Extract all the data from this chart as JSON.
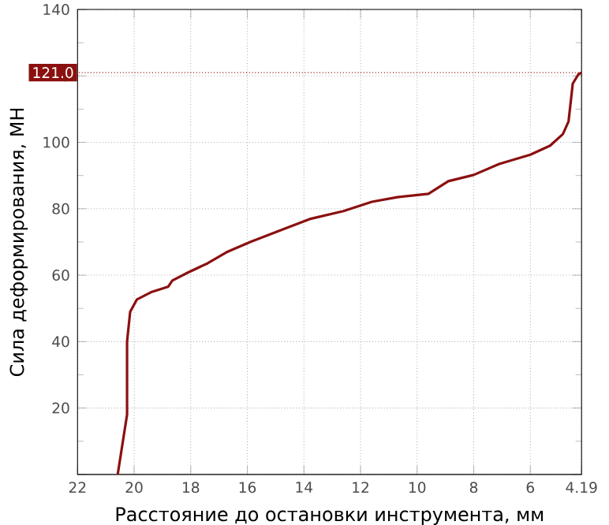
{
  "chart_data": {
    "type": "line",
    "xlabel": "Расстояние до остановки инструмента, мм",
    "ylabel": "Сила деформирования, МН",
    "x": [
      20.58,
      20.25,
      20.25,
      20.14,
      19.9,
      19.37,
      18.8,
      18.65,
      18.1,
      17.4,
      16.74,
      15.9,
      14.8,
      13.8,
      12.6,
      11.6,
      10.7,
      9.6,
      8.9,
      8.0,
      7.1,
      6.0,
      5.3,
      4.85,
      4.65,
      4.5,
      4.3,
      4.19
    ],
    "series": [
      {
        "color": "#8b1010",
        "values": [
          0,
          18,
          40,
          49,
          52.7,
          55,
          56.5,
          58.4,
          60.8,
          63.6,
          66.9,
          70,
          73.6,
          76.9,
          79.3,
          82.1,
          83.5,
          84.5,
          88.3,
          90.2,
          93.5,
          96.3,
          99,
          102.5,
          106.3,
          117.7,
          120.5,
          121
        ]
      }
    ],
    "xlim": [
      22,
      4.19
    ],
    "ylim": [
      0,
      140
    ],
    "xticks": [
      22,
      20,
      18,
      16,
      14,
      12,
      10,
      8,
      6,
      {
        "value": 4.19,
        "label": "4.19"
      }
    ],
    "yticks": [
      {
        "value": 0,
        "label": null
      },
      20,
      40,
      60,
      80,
      100,
      120,
      140
    ],
    "ref_lines": [
      {
        "axis": "y",
        "value": 121,
        "label": "121.0",
        "color": "#8b1010"
      }
    ],
    "grid": true,
    "line_style": "solid",
    "marker": "none"
  }
}
